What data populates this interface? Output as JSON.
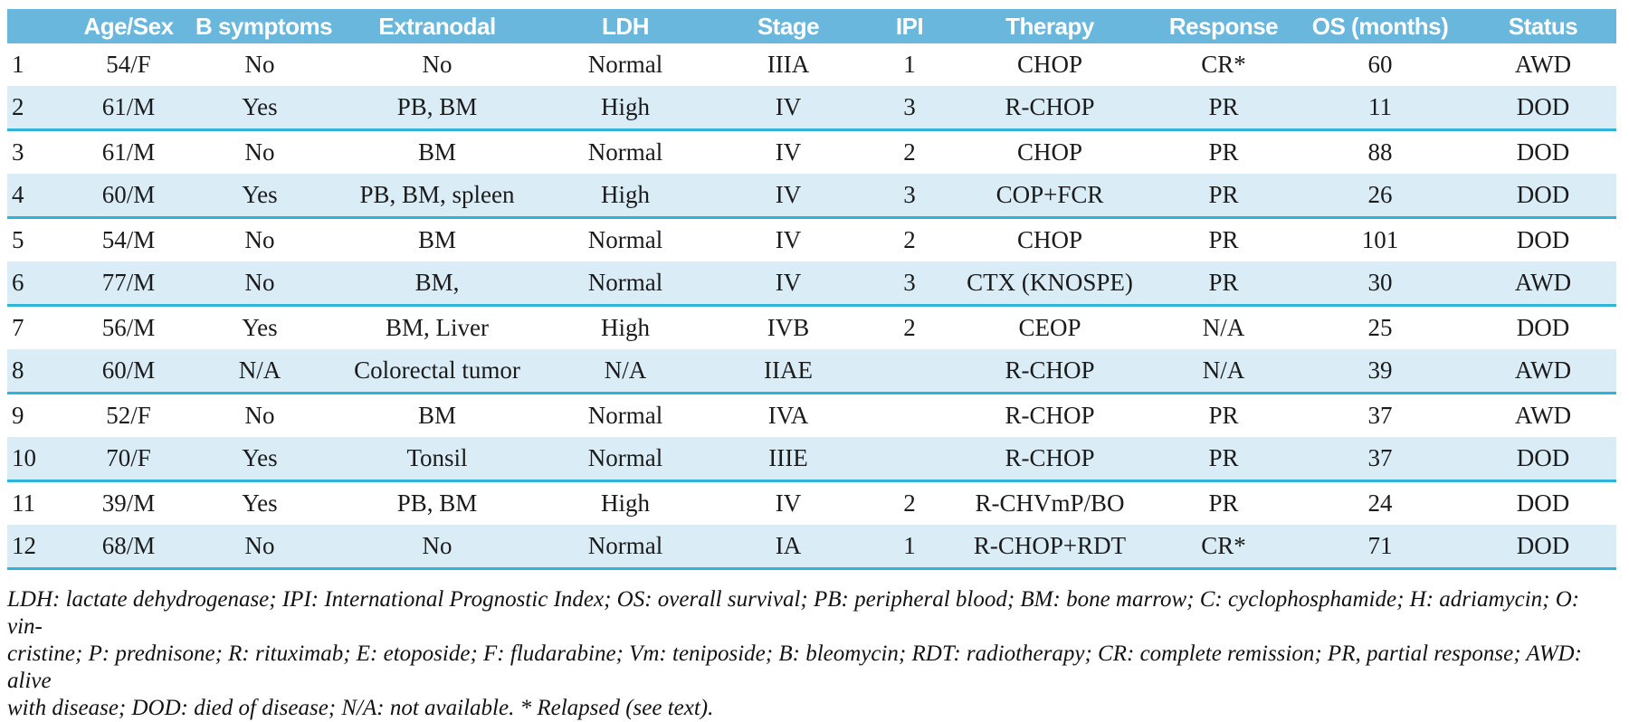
{
  "colors": {
    "header_bg": "#69b7dc",
    "row_alt_bg": "#daedf7",
    "separator": "#2fb3d9",
    "header_text": "#ffffff",
    "body_text": "#1b1b1b"
  },
  "table": {
    "columns": [
      "",
      "Age/Sex",
      "B symptoms",
      "Extranodal",
      "LDH",
      "Stage",
      "IPI",
      "Therapy",
      "Response",
      "OS (months)",
      "Status"
    ],
    "rows": [
      [
        "1",
        "54/F",
        "No",
        "No",
        "Normal",
        "IIIA",
        "1",
        "CHOP",
        "CR*",
        "60",
        "AWD"
      ],
      [
        "2",
        "61/M",
        "Yes",
        "PB, BM",
        "High",
        "IV",
        "3",
        "R-CHOP",
        "PR",
        "11",
        "DOD"
      ],
      [
        "3",
        "61/M",
        "No",
        "BM",
        "Normal",
        "IV",
        "2",
        "CHOP",
        "PR",
        "88",
        "DOD"
      ],
      [
        "4",
        "60/M",
        "Yes",
        "PB, BM, spleen",
        "High",
        "IV",
        "3",
        "COP+FCR",
        "PR",
        "26",
        "DOD"
      ],
      [
        "5",
        "54/M",
        "No",
        "BM",
        "Normal",
        "IV",
        "2",
        "CHOP",
        "PR",
        "101",
        "DOD"
      ],
      [
        "6",
        "77/M",
        "No",
        "BM,",
        "Normal",
        "IV",
        "3",
        "CTX (KNOSPE)",
        "PR",
        "30",
        "AWD"
      ],
      [
        "7",
        "56/M",
        "Yes",
        "BM, Liver",
        "High",
        "IVB",
        "2",
        "CEOP",
        "N/A",
        "25",
        "DOD"
      ],
      [
        "8",
        "60/M",
        "N/A",
        "Colorectal tumor",
        "N/A",
        "IIAE",
        "",
        "R-CHOP",
        "N/A",
        "39",
        "AWD"
      ],
      [
        "9",
        "52/F",
        "No",
        "BM",
        "Normal",
        "IVA",
        "",
        "R-CHOP",
        "PR",
        "37",
        "AWD"
      ],
      [
        "10",
        "70/F",
        "Yes",
        "Tonsil",
        "Normal",
        "IIIE",
        "",
        "R-CHOP",
        "PR",
        "37",
        "DOD"
      ],
      [
        "11",
        "39/M",
        "Yes",
        "PB, BM",
        "High",
        "IV",
        "2",
        "R-CHVmP/BO",
        "PR",
        "24",
        "DOD"
      ],
      [
        "12",
        "68/M",
        "No",
        "No",
        "Normal",
        "IA",
        "1",
        "R-CHOP+RDT",
        "CR*",
        "71",
        "DOD"
      ]
    ]
  },
  "footnote": {
    "lines": [
      "LDH: lactate dehydrogenase; IPI: International Prognostic Index; OS: overall survival; PB: peripheral blood; BM: bone marrow; C: cyclophosphamide; H: adriamycin; O: vin-",
      "cristine; P: prednisone; R: rituximab; E: etoposide; F: fludarabine; Vm: teniposide; B: bleomycin; RDT: radiotherapy; CR: complete remission; PR, partial response; AWD: alive",
      "with disease; DOD: died of disease; N/A: not available. * Relapsed (see text)."
    ]
  }
}
